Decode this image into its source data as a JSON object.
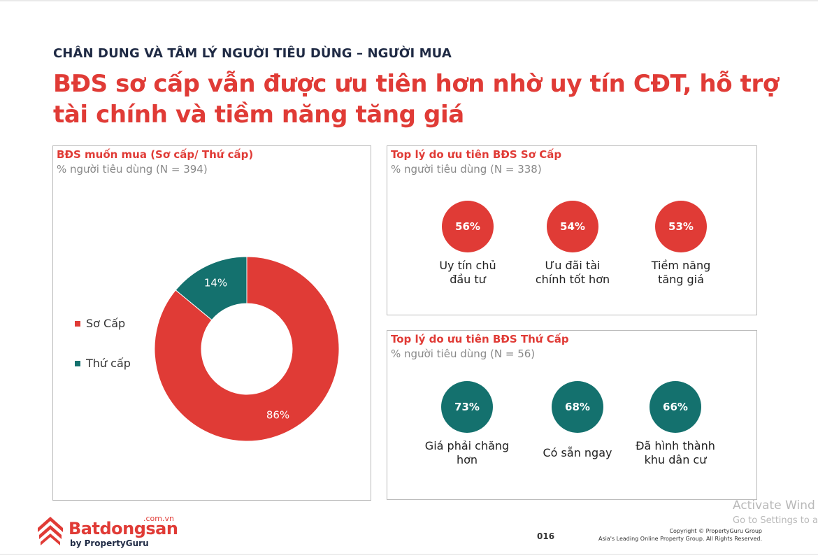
{
  "header": {
    "kicker": "CHÂN DUNG VÀ TÂM LÝ NGƯỜI TIÊU DÙNG – NGƯỜI MUA",
    "headline": "BĐS sơ cấp vẫn được ưu tiên hơn nhờ uy tín CĐT, hỗ trợ tài chính và tiềm năng tăng giá"
  },
  "panels": {
    "donut": {
      "title": "BĐS muốn mua (Sơ cấp/ Thứ cấp)",
      "subtitle": "% người tiêu dùng (N = 394)"
    },
    "primary": {
      "title": "Top lý do ưu tiên BĐS Sơ Cấp",
      "subtitle": "% người tiêu dùng (N = 338)",
      "items": [
        {
          "value": "56%",
          "label": "Uy tín chủ đầu tư"
        },
        {
          "value": "54%",
          "label": "Ưu đãi tài chính tốt hơn"
        },
        {
          "value": "53%",
          "label": "Tiềm năng tăng giá"
        }
      ]
    },
    "secondary": {
      "title": "Top lý do ưu tiên BĐS Thứ Cấp",
      "subtitle": "% người tiêu dùng (N = 56)",
      "items": [
        {
          "value": "73%",
          "label": "Giá phải chăng hơn"
        },
        {
          "value": "68%",
          "label": "Có sẵn ngay"
        },
        {
          "value": "66%",
          "label": "Đã hình thành khu dân cư"
        }
      ]
    }
  },
  "colors": {
    "red": "#e03b36",
    "teal": "#14716e",
    "navy": "#1f2a44"
  },
  "chart_data": [
    {
      "type": "pie",
      "categories": [
        "Sơ Cấp",
        "Thứ cấp"
      ],
      "values": [
        86,
        14
      ],
      "labels": [
        "86%",
        "14%"
      ],
      "colors": [
        "#e03b36",
        "#14716e"
      ],
      "legend_position": "left"
    },
    {
      "type": "table",
      "categories": [
        "Uy tín chủ đầu tư",
        "Ưu đãi tài chính tốt hơn",
        "Tiềm năng tăng giá"
      ],
      "values": [
        56,
        54,
        53
      ]
    },
    {
      "type": "table",
      "categories": [
        "Giá phải chăng hơn",
        "Có sẵn ngay",
        "Đã hình thành khu dân cư"
      ],
      "values": [
        73,
        68,
        66
      ]
    }
  ],
  "footer": {
    "logo_domain": ".com.vn",
    "logo_name": "Batdongsan",
    "logo_by": "by PropertyGuru",
    "page_number": "016",
    "copyright_line1": "Copyright © PropertyGuru Group",
    "copyright_line2": "Asia's Leading Online Property Group. All Rights Reserved."
  },
  "watermark": {
    "line1": "Activate Wind",
    "line2": "Go to Settings to a"
  }
}
